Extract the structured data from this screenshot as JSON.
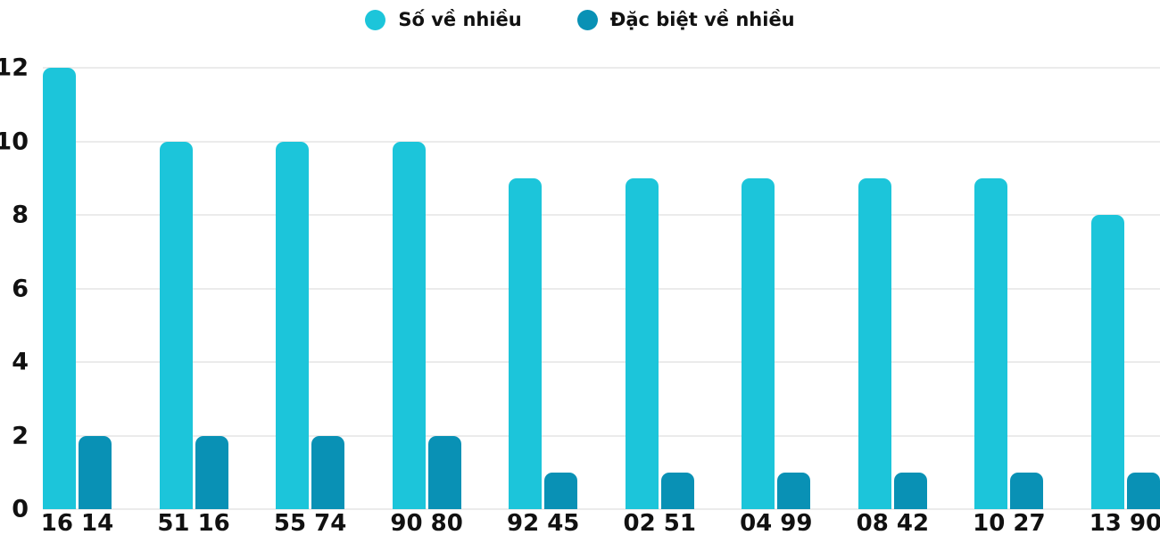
{
  "page": {
    "background": "#ffffff"
  },
  "chart_data": {
    "type": "bar",
    "title": "",
    "xlabel": "",
    "ylabel": "",
    "categories": [
      "16 14",
      "51 16",
      "55 74",
      "90 80",
      "92 45",
      "02 51",
      "04 99",
      "08 42",
      "10 27",
      "13 90"
    ],
    "series": [
      {
        "name": "Số về nhiều",
        "color": "#1cc5da",
        "values": [
          12,
          10,
          10,
          10,
          9,
          9,
          9,
          9,
          9,
          8
        ]
      },
      {
        "name": "Đặc biệt về nhiều",
        "color": "#0991b5",
        "values": [
          2,
          2,
          2,
          2,
          1,
          1,
          1,
          1,
          1,
          1
        ]
      }
    ],
    "y_ticks": [
      0,
      2,
      4,
      6,
      8,
      10,
      12
    ],
    "ylim": [
      0,
      12
    ],
    "grid": true,
    "gridline_color": "#ebebeb",
    "axis_text_color": "#111111",
    "legend_position": "top-center"
  }
}
